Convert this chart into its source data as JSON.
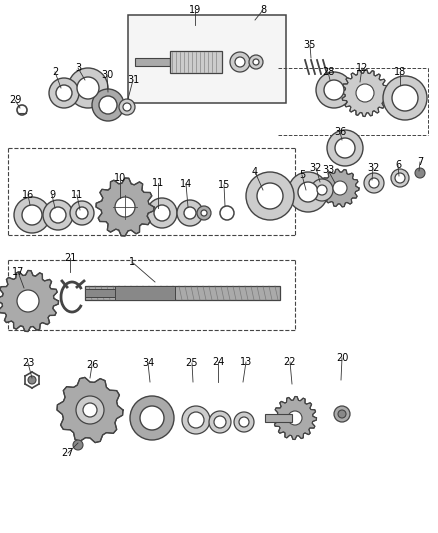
{
  "bg_color": "#ffffff",
  "part_color": "#444444",
  "gray1": "#cccccc",
  "gray2": "#aaaaaa",
  "gray3": "#888888",
  "gray4": "#666666",
  "lw_main": 1.0,
  "label_fs": 7
}
